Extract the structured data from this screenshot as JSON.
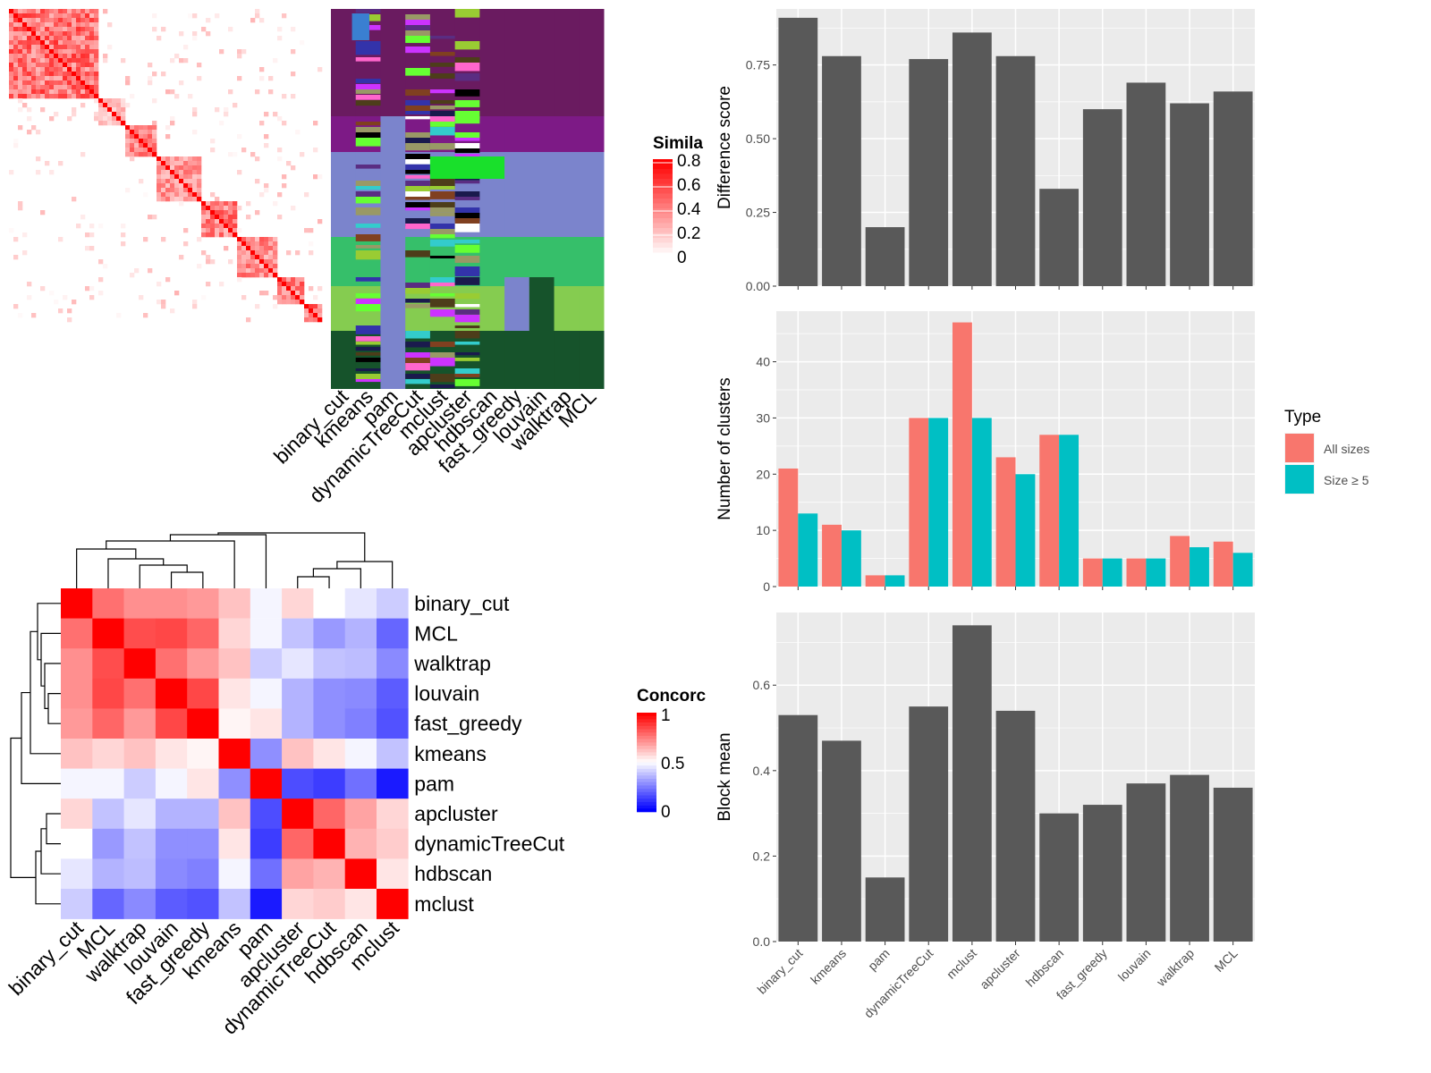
{
  "colors": {
    "bar": "#595959",
    "panel_bg": "#ebebeb",
    "grid": "#ffffff",
    "all_sizes": "#f8766d",
    "size_ge5": "#00bfc4",
    "sim_high": "#ff0000",
    "conc_high": "#ff0000",
    "conc_mid": "#ffffff",
    "conc_low": "#0000ff"
  },
  "similarity_heatmap": {
    "legend_title": "Simila",
    "legend_ticks": [
      "0.8",
      "0.6",
      "0.4",
      "0.2",
      "0"
    ],
    "method_labels": [
      "binary_cut",
      "kmeans",
      "pam",
      "dynamicTreeCut",
      "mclust",
      "apcluster",
      "hdbscan",
      "fast_greedy",
      "louvain",
      "walktrap",
      "MCL"
    ]
  },
  "concordance_heatmap": {
    "legend_title": "Concorc",
    "legend_ticks": [
      "1",
      "0.5",
      "0"
    ],
    "row_labels": [
      "binary_cut",
      "MCL",
      "walktrap",
      "louvain",
      "fast_greedy",
      "kmeans",
      "pam",
      "apcluster",
      "dynamicTreeCut",
      "hdbscan",
      "mclust"
    ],
    "col_labels": [
      "binary_cut",
      "MCL",
      "walktrap",
      "louvain",
      "fast_greedy",
      "kmeans",
      "pam",
      "apcluster",
      "dynamicTreeCut",
      "hdbscan",
      "mclust"
    ],
    "matrix": [
      [
        1.0,
        0.78,
        0.72,
        0.72,
        0.7,
        0.62,
        0.48,
        0.58,
        0.5,
        0.45,
        0.4
      ],
      [
        0.78,
        1.0,
        0.85,
        0.86,
        0.8,
        0.58,
        0.48,
        0.38,
        0.3,
        0.35,
        0.2
      ],
      [
        0.72,
        0.85,
        1.0,
        0.78,
        0.7,
        0.62,
        0.4,
        0.45,
        0.38,
        0.37,
        0.27
      ],
      [
        0.72,
        0.86,
        0.78,
        1.0,
        0.86,
        0.55,
        0.48,
        0.35,
        0.28,
        0.27,
        0.18
      ],
      [
        0.7,
        0.8,
        0.7,
        0.86,
        1.0,
        0.52,
        0.55,
        0.35,
        0.28,
        0.25,
        0.16
      ],
      [
        0.62,
        0.58,
        0.62,
        0.55,
        0.52,
        1.0,
        0.28,
        0.62,
        0.55,
        0.48,
        0.38
      ],
      [
        0.48,
        0.48,
        0.4,
        0.48,
        0.55,
        0.28,
        1.0,
        0.15,
        0.12,
        0.22,
        0.05
      ],
      [
        0.58,
        0.38,
        0.45,
        0.35,
        0.35,
        0.62,
        0.15,
        1.0,
        0.8,
        0.68,
        0.58
      ],
      [
        0.5,
        0.3,
        0.38,
        0.28,
        0.28,
        0.55,
        0.12,
        0.8,
        1.0,
        0.65,
        0.6
      ],
      [
        0.45,
        0.35,
        0.37,
        0.27,
        0.25,
        0.48,
        0.22,
        0.68,
        0.65,
        1.0,
        0.55
      ],
      [
        0.4,
        0.2,
        0.27,
        0.18,
        0.16,
        0.38,
        0.05,
        0.58,
        0.6,
        0.55,
        1.0
      ]
    ]
  },
  "chart_data": [
    {
      "type": "bar",
      "categories": [
        "binary_cut",
        "kmeans",
        "pam",
        "dynamicTreeCut",
        "mclust",
        "apcluster",
        "hdbscan",
        "fast_greedy",
        "louvain",
        "walktrap",
        "MCL"
      ],
      "values": [
        0.91,
        0.78,
        0.2,
        0.77,
        0.86,
        0.78,
        0.33,
        0.6,
        0.69,
        0.62,
        0.66
      ],
      "ylabel": "Difference score",
      "ylim": [
        0,
        0.94
      ],
      "yticks": [
        "0.00",
        "0.25",
        "0.50",
        "0.75"
      ],
      "grid": true
    },
    {
      "type": "bar",
      "categories": [
        "binary_cut",
        "kmeans",
        "pam",
        "dynamicTreeCut",
        "mclust",
        "apcluster",
        "hdbscan",
        "fast_greedy",
        "louvain",
        "walktrap",
        "MCL"
      ],
      "series": [
        {
          "name": "All sizes",
          "values": [
            21,
            11,
            2,
            30,
            47,
            23,
            27,
            5,
            5,
            9,
            8
          ]
        },
        {
          "name": "Size ≥ 5",
          "values": [
            13,
            10,
            2,
            30,
            30,
            20,
            27,
            5,
            5,
            7,
            6
          ]
        }
      ],
      "ylabel": "Number of clusters",
      "ylim": [
        0,
        49
      ],
      "yticks": [
        "0",
        "10",
        "20",
        "30",
        "40"
      ],
      "legend_title": "Type",
      "legend_position": "right",
      "grid": true
    },
    {
      "type": "bar",
      "categories": [
        "binary_cut",
        "kmeans",
        "pam",
        "dynamicTreeCut",
        "mclust",
        "apcluster",
        "hdbscan",
        "fast_greedy",
        "louvain",
        "walktrap",
        "MCL"
      ],
      "values": [
        0.53,
        0.47,
        0.15,
        0.55,
        0.74,
        0.54,
        0.3,
        0.32,
        0.37,
        0.39,
        0.36
      ],
      "ylabel": "Block mean",
      "ylim": [
        0,
        0.77
      ],
      "yticks": [
        "0.0",
        "0.2",
        "0.4",
        "0.6"
      ],
      "grid": true
    }
  ]
}
